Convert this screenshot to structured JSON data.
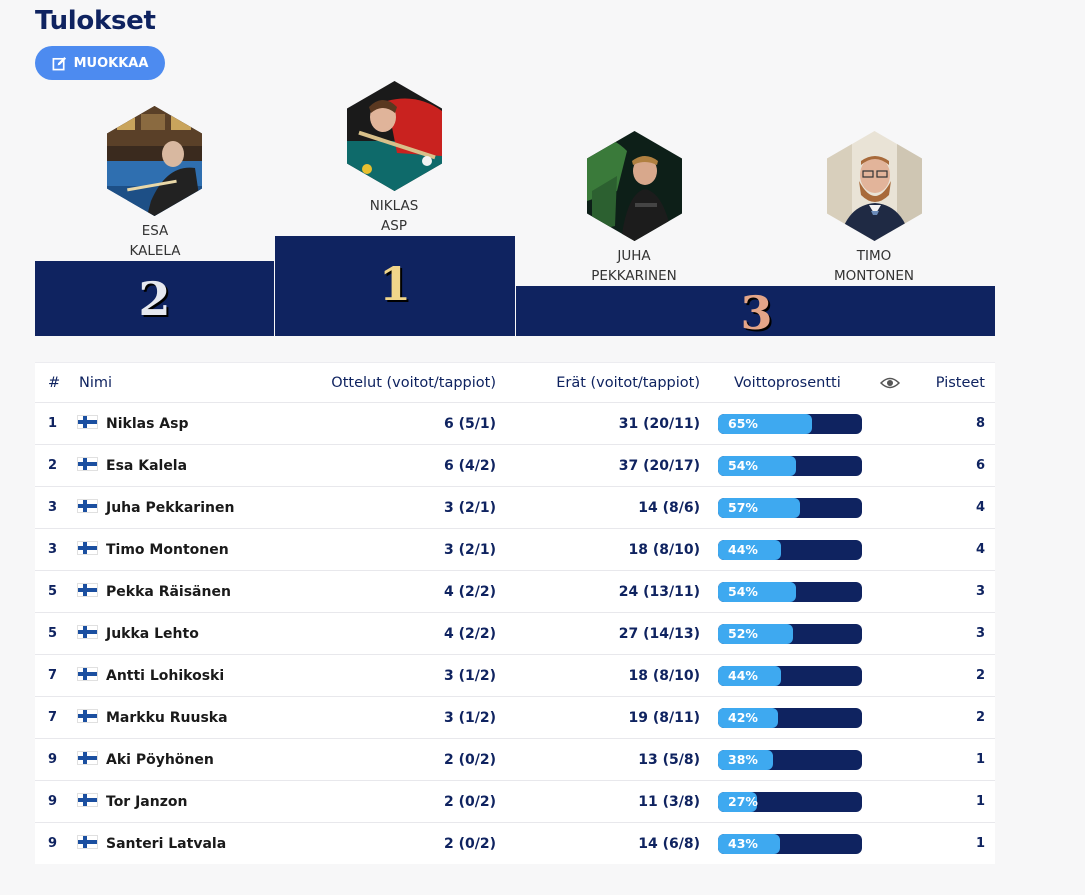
{
  "page": {
    "title": "Tulokset",
    "edit_button": "MUOKKAA"
  },
  "podium": {
    "first": {
      "first_name": "NIKLAS",
      "last_name": "ASP",
      "place": "1"
    },
    "second": {
      "first_name": "ESA",
      "last_name": "KALELA",
      "place": "2"
    },
    "third": {
      "first_name": "JUHA",
      "last_name": "PEKKARINEN",
      "place": "3"
    },
    "fourth": {
      "first_name": "TIMO",
      "last_name": "MONTONEN"
    }
  },
  "colors": {
    "navy": "#0f2360",
    "accent": "#4d8bf0",
    "bar_fill": "#3ea9f0",
    "gold": "#f0d58a",
    "silver": "#e6e8ef",
    "bronze": "#e3a588"
  },
  "table": {
    "headers": {
      "rank": "#",
      "name": "Nimi",
      "matches": "Ottelut (voitot/tappiot)",
      "frames": "Erät (voitot/tappiot)",
      "win_pct": "Voittoprosentti",
      "visibility_icon": "eye-icon",
      "points": "Pisteet"
    },
    "rows": [
      {
        "rank": "1",
        "name": "Niklas Asp",
        "matches": "6 (5/1)",
        "frames": "31 (20/11)",
        "pct": 65,
        "pct_label": "65%",
        "points": "8"
      },
      {
        "rank": "2",
        "name": "Esa Kalela",
        "matches": "6 (4/2)",
        "frames": "37 (20/17)",
        "pct": 54,
        "pct_label": "54%",
        "points": "6"
      },
      {
        "rank": "3",
        "name": "Juha Pekkarinen",
        "matches": "3 (2/1)",
        "frames": "14 (8/6)",
        "pct": 57,
        "pct_label": "57%",
        "points": "4"
      },
      {
        "rank": "3",
        "name": "Timo Montonen",
        "matches": "3 (2/1)",
        "frames": "18 (8/10)",
        "pct": 44,
        "pct_label": "44%",
        "points": "4"
      },
      {
        "rank": "5",
        "name": "Pekka Räisänen",
        "matches": "4 (2/2)",
        "frames": "24 (13/11)",
        "pct": 54,
        "pct_label": "54%",
        "points": "3"
      },
      {
        "rank": "5",
        "name": "Jukka Lehto",
        "matches": "4 (2/2)",
        "frames": "27 (14/13)",
        "pct": 52,
        "pct_label": "52%",
        "points": "3"
      },
      {
        "rank": "7",
        "name": "Antti Lohikoski",
        "matches": "3 (1/2)",
        "frames": "18 (8/10)",
        "pct": 44,
        "pct_label": "44%",
        "points": "2"
      },
      {
        "rank": "7",
        "name": "Markku Ruuska",
        "matches": "3 (1/2)",
        "frames": "19 (8/11)",
        "pct": 42,
        "pct_label": "42%",
        "points": "2"
      },
      {
        "rank": "9",
        "name": "Aki Pöyhönen",
        "matches": "2 (0/2)",
        "frames": "13 (5/8)",
        "pct": 38,
        "pct_label": "38%",
        "points": "1"
      },
      {
        "rank": "9",
        "name": "Tor Janzon",
        "matches": "2 (0/2)",
        "frames": "11 (3/8)",
        "pct": 27,
        "pct_label": "27%",
        "points": "1"
      },
      {
        "rank": "9",
        "name": "Santeri Latvala",
        "matches": "2 (0/2)",
        "frames": "14 (6/8)",
        "pct": 43,
        "pct_label": "43%",
        "points": "1"
      }
    ]
  }
}
